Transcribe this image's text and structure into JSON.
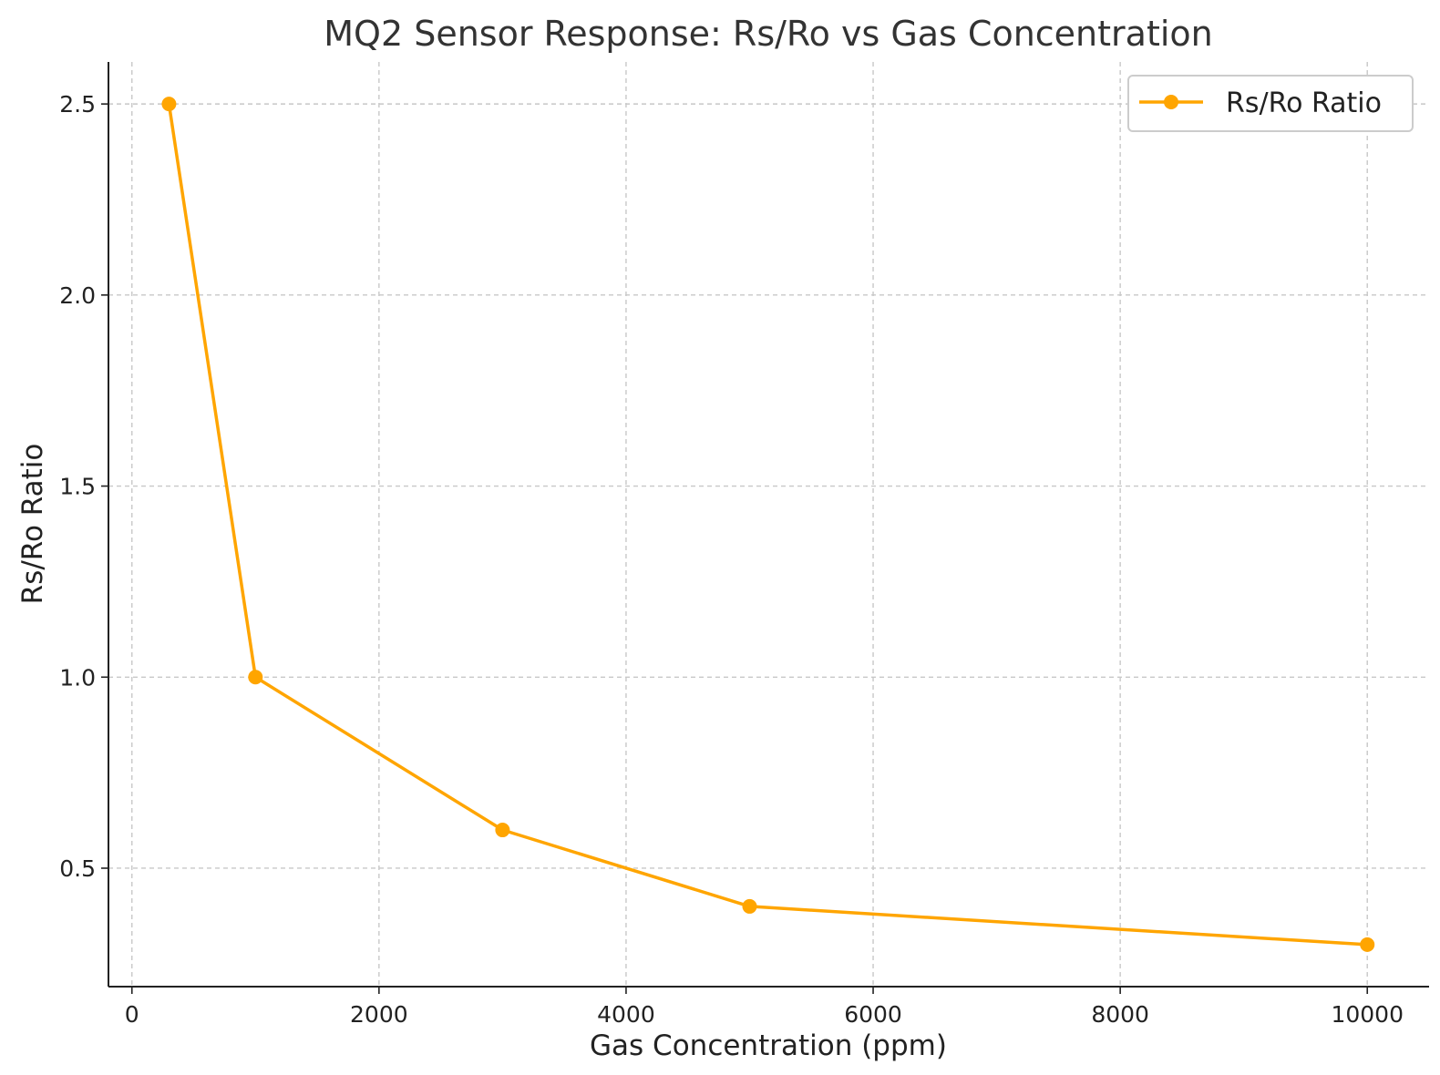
{
  "chart_data": {
    "type": "line",
    "title": "MQ2 Sensor Response: Rs/Ro vs Gas Concentration",
    "xlabel": "Gas Concentration (ppm)",
    "ylabel": "Rs/Ro Ratio",
    "xlim": [
      -190,
      10500
    ],
    "ylim": [
      0.19,
      2.61
    ],
    "x_ticks": [
      0,
      2000,
      4000,
      6000,
      8000,
      10000
    ],
    "x_tick_labels": [
      "0",
      "2000",
      "4000",
      "6000",
      "8000",
      "10000"
    ],
    "y_ticks": [
      0.5,
      1.0,
      1.5,
      2.0,
      2.5
    ],
    "y_tick_labels": [
      "0.5",
      "1.0",
      "1.5",
      "2.0",
      "2.5"
    ],
    "grid": true,
    "legend_position": "top-right",
    "series": [
      {
        "name": "Rs/Ro Ratio",
        "color": "#FFA500",
        "marker": "circle",
        "x": [
          300,
          1000,
          3000,
          5000,
          10000
        ],
        "y": [
          2.5,
          1.0,
          0.6,
          0.4,
          0.3
        ]
      }
    ]
  }
}
